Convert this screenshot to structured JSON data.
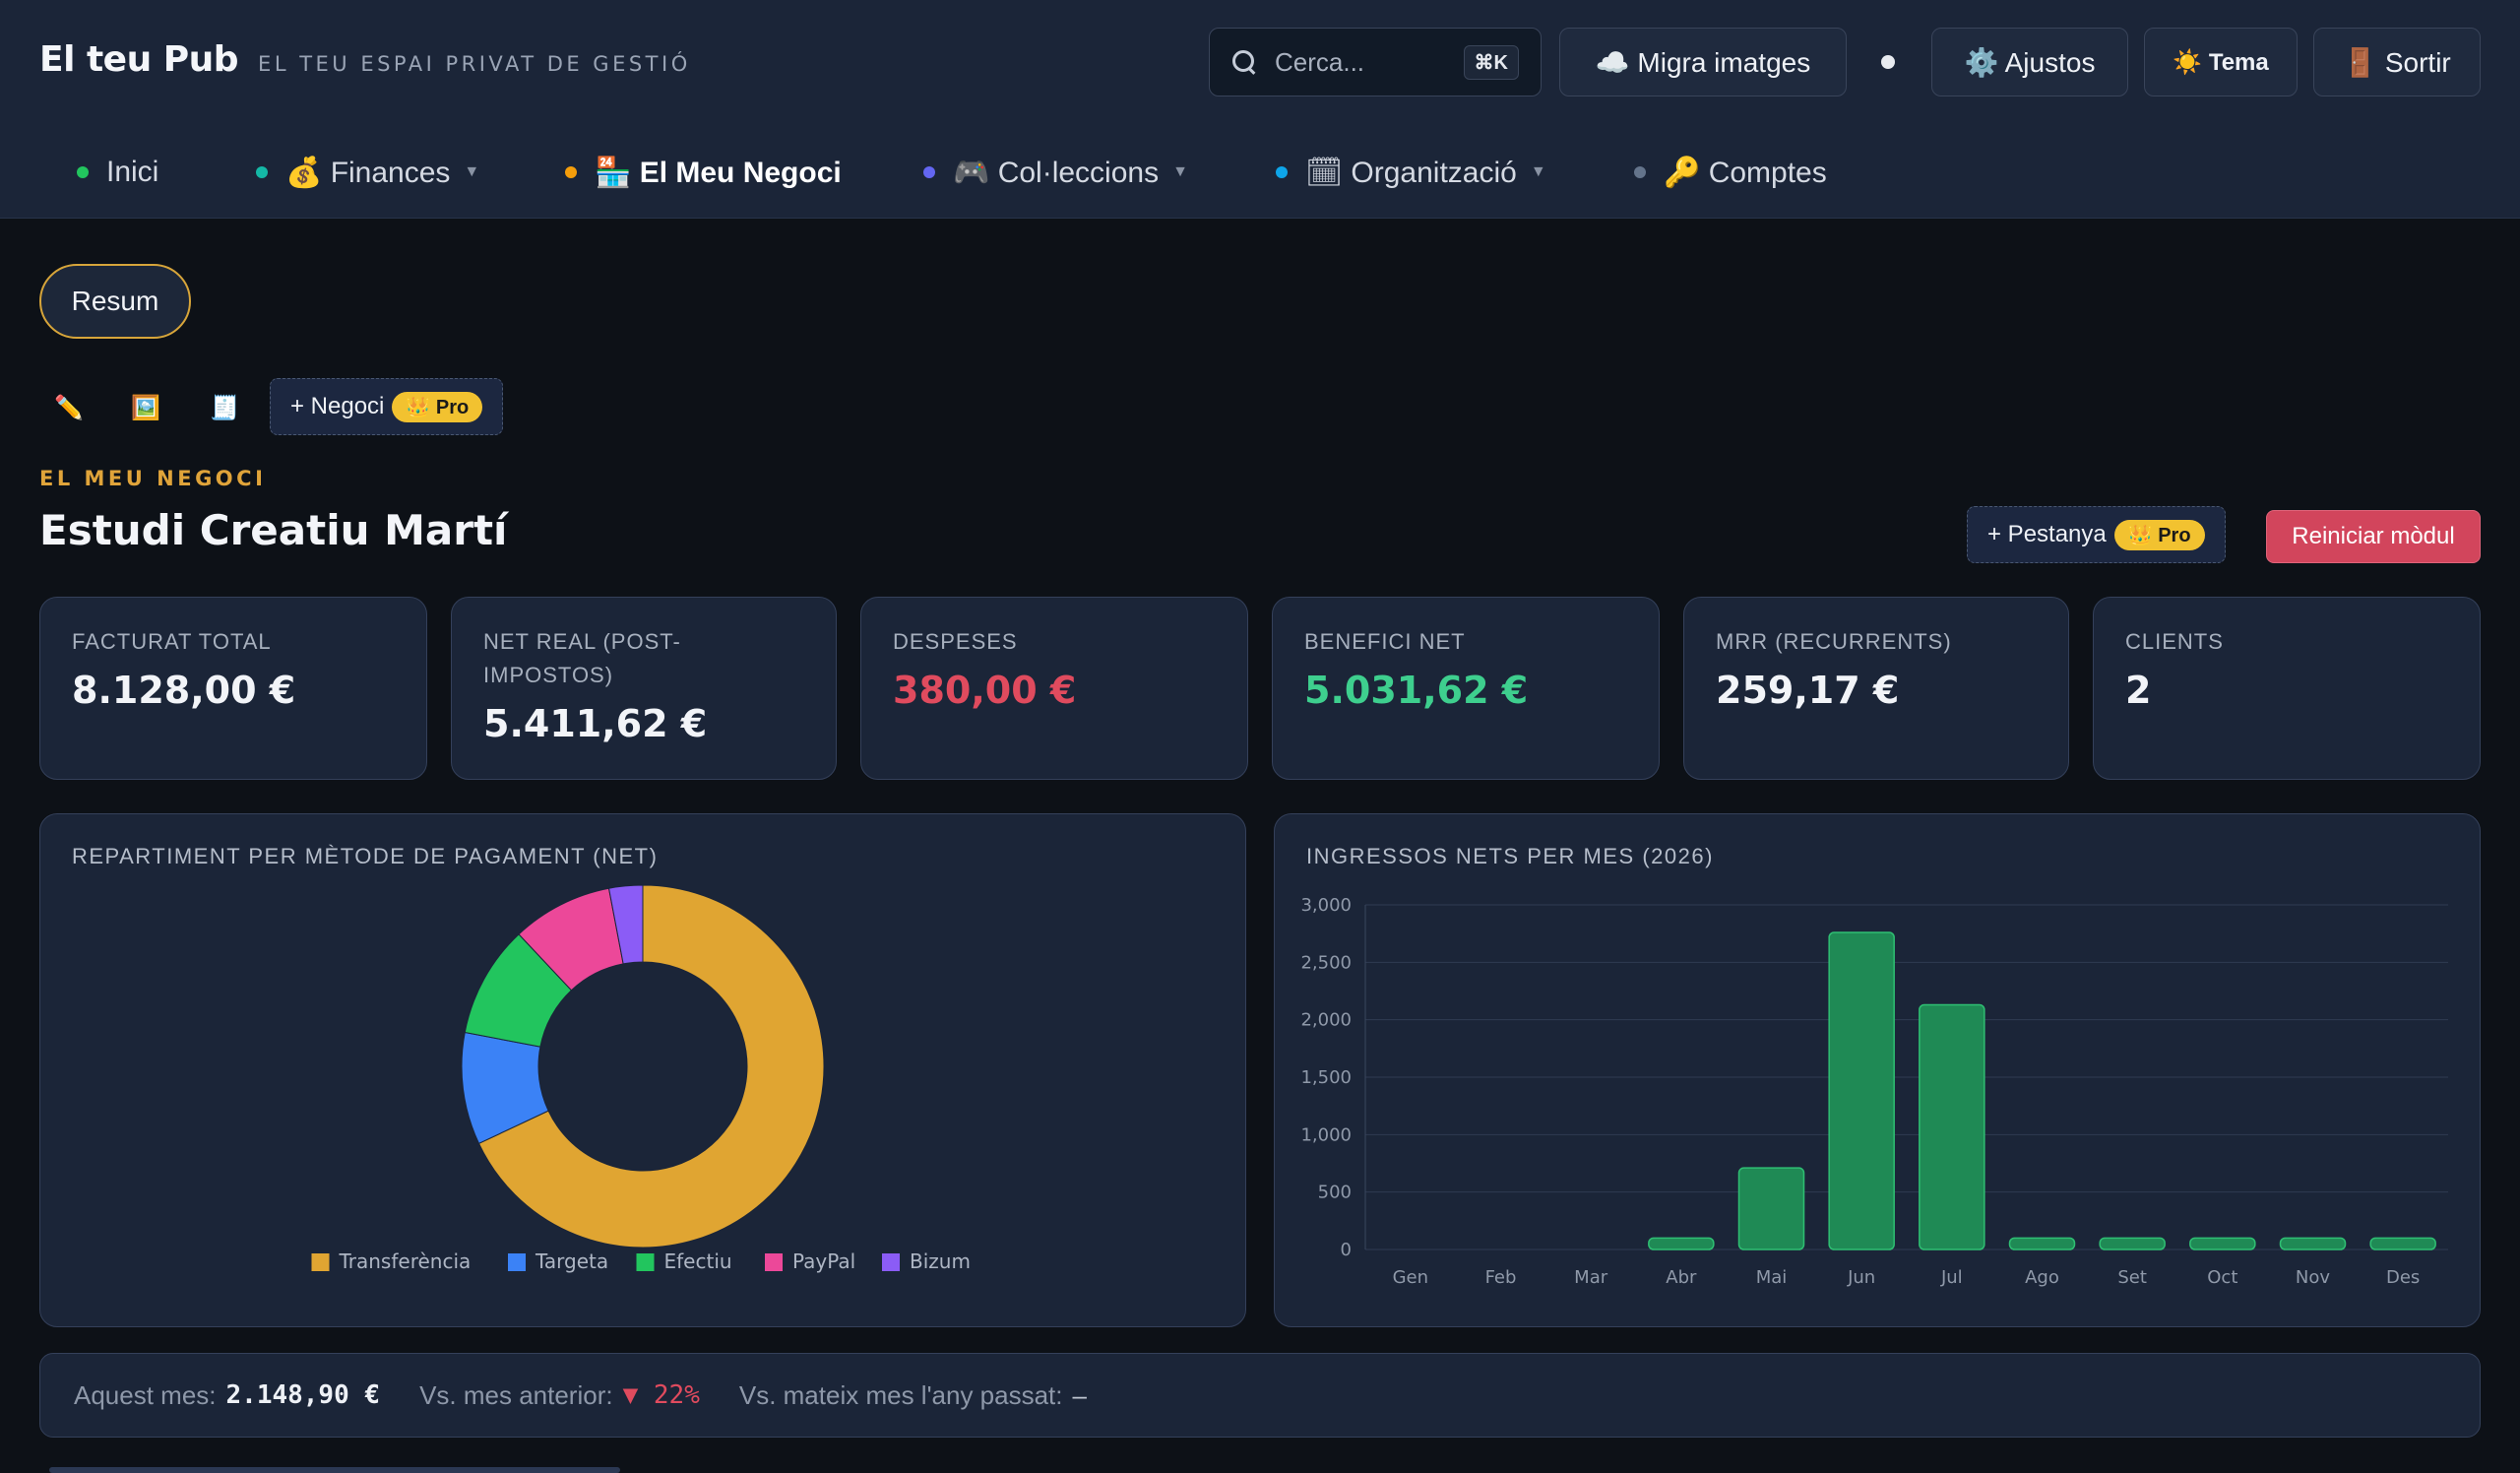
{
  "brand": {
    "title": "El teu Pub",
    "subtitle": "EL TEU ESPAI PRIVAT DE GESTIÓ"
  },
  "header": {
    "search_placeholder": "Cerca...",
    "search_shortcut": "⌘K",
    "migrate_label": "☁️ Migra imatges",
    "settings_label": "⚙️ Ajustos",
    "theme_label": "☀️ Tema",
    "logout_label": "🚪 Sortir"
  },
  "nav": [
    {
      "label": "Inici",
      "dot": "#22c55e",
      "dropdown": false
    },
    {
      "label": "💰 Finances",
      "dot": "#14b8a6",
      "dropdown": true
    },
    {
      "label": "🏪 El Meu Negoci",
      "dot": "#f59e0b",
      "dropdown": false
    },
    {
      "label": "🎮 Col·leccions",
      "dot": "#6366f1",
      "dropdown": true
    },
    {
      "label": "🗓 Organització",
      "dot": "#0ea5e9",
      "dropdown": true
    },
    {
      "label": "🔑 Comptes",
      "dot": "#64748b",
      "dropdown": false
    }
  ],
  "tabs": {
    "summary": "Resum"
  },
  "tools": {
    "edit_icon": "✏️",
    "image_icon": "🖼️",
    "receipt_icon": "🧾"
  },
  "actions": {
    "add_business": "+ Negoci",
    "add_tab": "+ Pestanya",
    "pro": "👑 Pro",
    "reset_module": "Reiniciar mòdul"
  },
  "section": {
    "kicker": "EL MEU NEGOCI",
    "title": "Estudi Creatiu Martí"
  },
  "kpis": [
    {
      "label": "FACTURAT TOTAL",
      "value": "8.128,00 €",
      "color": "#f2f4f8"
    },
    {
      "label": "NET REAL (POST-IMPOSTOS)",
      "value": "5.411,62 €",
      "color": "#f2f4f8"
    },
    {
      "label": "DESPESES",
      "value": "380,00 €",
      "color": "#e04b5e"
    },
    {
      "label": "BENEFICI NET",
      "value": "5.031,62 €",
      "color": "#3ecf8e"
    },
    {
      "label": "MRR (RECURRENTS)",
      "value": "259,17 €",
      "color": "#f2f4f8"
    },
    {
      "label": "CLIENTS",
      "value": "2",
      "color": "#f2f4f8"
    }
  ],
  "chart_data": [
    {
      "type": "pie",
      "title": "REPARTIMENT PER MÈTODE DE PAGAMENT (NET)",
      "donut": true,
      "legend": "bottom",
      "series": [
        {
          "name": "Transferència",
          "value": 68,
          "color": "#e0a532"
        },
        {
          "name": "Targeta",
          "value": 10,
          "color": "#3b82f6"
        },
        {
          "name": "Efectiu",
          "value": 10,
          "color": "#22c55e"
        },
        {
          "name": "PayPal",
          "value": 9,
          "color": "#ec4899"
        },
        {
          "name": "Bizum",
          "value": 3,
          "color": "#8b5cf6"
        }
      ]
    },
    {
      "type": "bar",
      "title": "INGRESSOS NETS PER MES (2026)",
      "categories": [
        "Gen",
        "Feb",
        "Mar",
        "Abr",
        "Mai",
        "Jun",
        "Jul",
        "Ago",
        "Set",
        "Oct",
        "Nov",
        "Des"
      ],
      "values": [
        0,
        0,
        0,
        100,
        710,
        2760,
        2130,
        100,
        100,
        100,
        100,
        100
      ],
      "ylim": [
        0,
        3000
      ],
      "yticks": [
        "0",
        "500",
        "1,000",
        "1,500",
        "2,000",
        "2,500",
        "3,000"
      ],
      "grid": true,
      "bar_color": "#1f8a55"
    }
  ],
  "footer": {
    "this_month_label": "Aquest mes:",
    "this_month_value": "2.148,90 €",
    "vs_prev_label": "Vs. mes anterior:",
    "vs_prev_value": "▼ 22%",
    "vs_year_label": "Vs. mateix mes l'any passat:",
    "vs_year_value": "–"
  }
}
